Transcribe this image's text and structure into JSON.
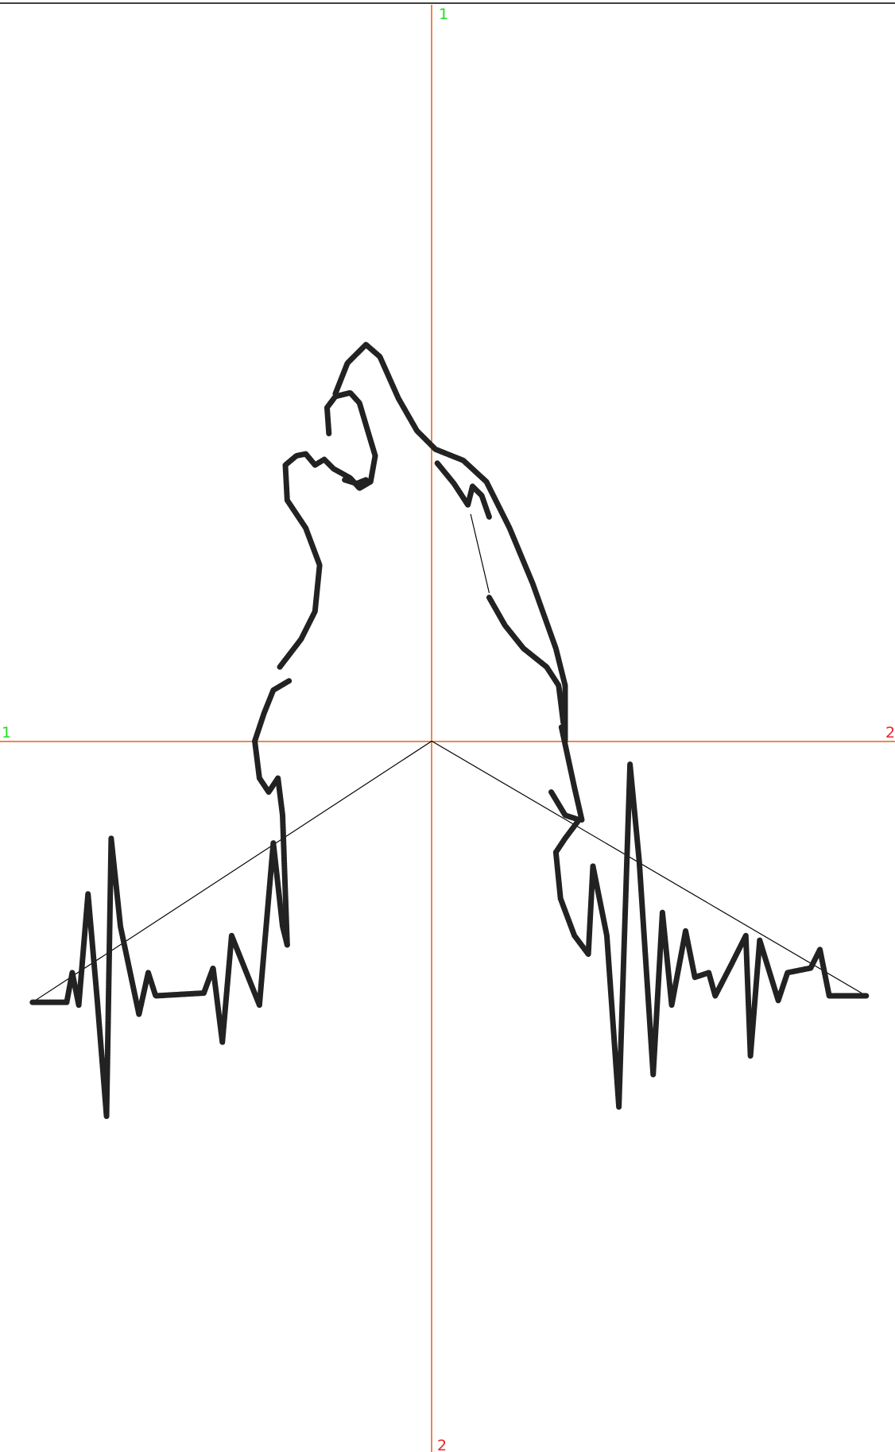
{
  "axes": {
    "top": "1",
    "left": "1",
    "right": "2",
    "bottom": "2"
  }
}
